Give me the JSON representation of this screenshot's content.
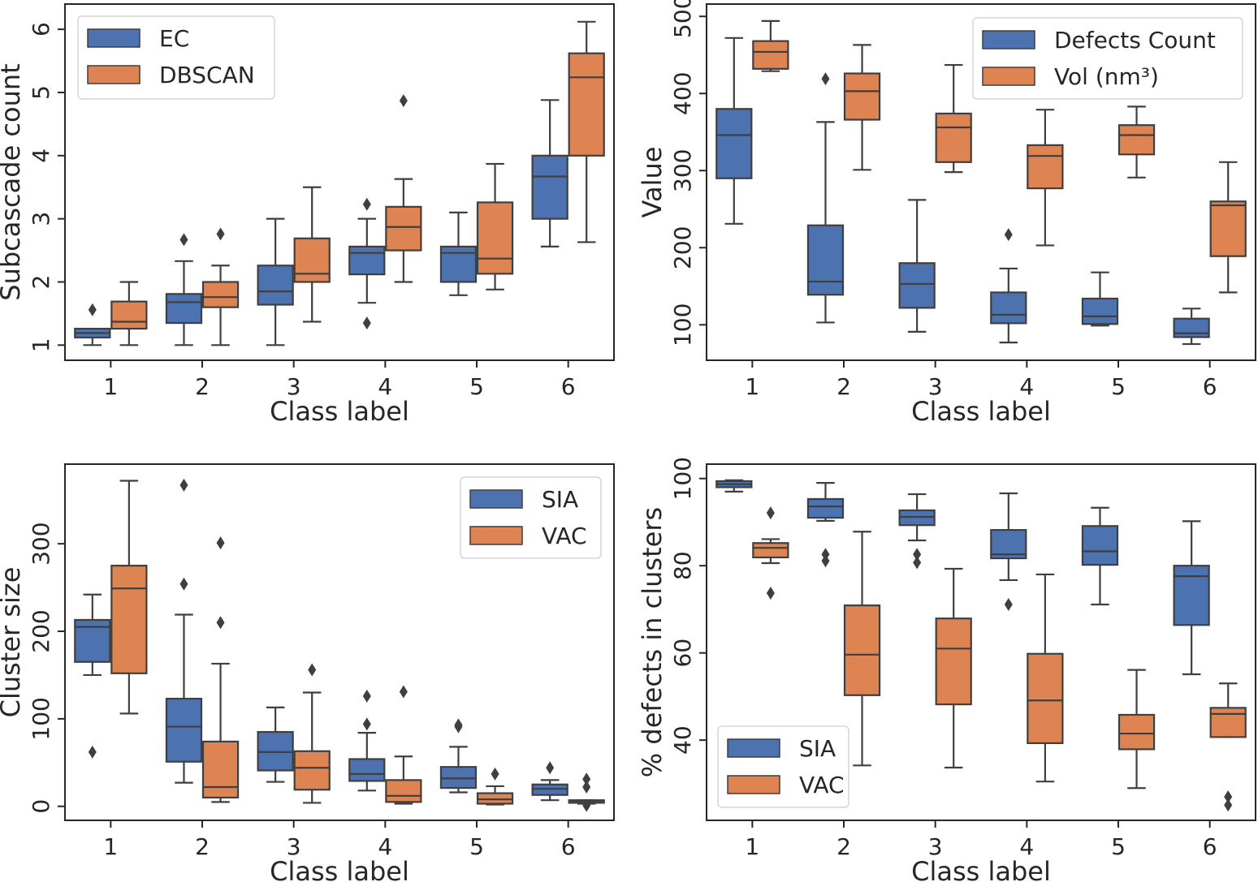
{
  "colors": {
    "blue": "#4c72b0",
    "orange": "#dd8452",
    "line": "#3f3f3f"
  },
  "chart_data": [
    {
      "type": "box",
      "xlabel": "Class label",
      "ylabel": "Subcascade count",
      "categories": [
        "1",
        "2",
        "3",
        "4",
        "5",
        "6"
      ],
      "yticks": [
        1,
        2,
        3,
        4,
        5,
        6
      ],
      "ylim": [
        0.76,
        6.4
      ],
      "legend": "top-left",
      "grid": false,
      "series": [
        {
          "name": "EC",
          "color": "blue",
          "stats": [
            {
              "whislo": 1.0,
              "q1": 1.12,
              "med": 1.19,
              "q3": 1.26,
              "whishi": 1.26,
              "fliers": [
                1.56
              ]
            },
            {
              "whislo": 1.0,
              "q1": 1.35,
              "med": 1.68,
              "q3": 1.81,
              "whishi": 2.33,
              "fliers": [
                2.67
              ]
            },
            {
              "whislo": 1.0,
              "q1": 1.64,
              "med": 1.85,
              "q3": 2.26,
              "whishi": 3.0,
              "fliers": []
            },
            {
              "whislo": 1.67,
              "q1": 2.12,
              "med": 2.46,
              "q3": 2.56,
              "whishi": 3.0,
              "fliers": [
                3.23,
                1.35
              ]
            },
            {
              "whislo": 1.79,
              "q1": 2.0,
              "med": 2.46,
              "q3": 2.56,
              "whishi": 3.1,
              "fliers": []
            },
            {
              "whislo": 2.56,
              "q1": 3.0,
              "med": 3.67,
              "q3": 4.0,
              "whishi": 4.88,
              "fliers": []
            }
          ]
        },
        {
          "name": "DBSCAN",
          "color": "orange",
          "stats": [
            {
              "whislo": 1.0,
              "q1": 1.26,
              "med": 1.37,
              "q3": 1.69,
              "whishi": 2.0,
              "fliers": []
            },
            {
              "whislo": 1.0,
              "q1": 1.6,
              "med": 1.76,
              "q3": 2.0,
              "whishi": 2.26,
              "fliers": [
                2.76
              ]
            },
            {
              "whislo": 1.37,
              "q1": 2.0,
              "med": 2.13,
              "q3": 2.69,
              "whishi": 3.5,
              "fliers": []
            },
            {
              "whislo": 2.0,
              "q1": 2.5,
              "med": 2.87,
              "q3": 3.19,
              "whishi": 3.63,
              "fliers": [
                4.87
              ]
            },
            {
              "whislo": 1.88,
              "q1": 2.13,
              "med": 2.37,
              "q3": 3.26,
              "whishi": 3.87,
              "fliers": []
            },
            {
              "whislo": 2.63,
              "q1": 4.0,
              "med": 5.24,
              "q3": 5.62,
              "whishi": 6.12,
              "fliers": []
            }
          ]
        }
      ]
    },
    {
      "type": "box",
      "xlabel": "Class label",
      "ylabel": "Value",
      "categories": [
        "1",
        "2",
        "3",
        "4",
        "5",
        "6"
      ],
      "yticks": [
        100,
        200,
        300,
        400,
        500
      ],
      "ylim": [
        54,
        516
      ],
      "legend": "top-right",
      "grid": false,
      "series": [
        {
          "name": "Defects Count",
          "color": "blue",
          "stats": [
            {
              "whislo": 231,
              "q1": 290,
              "med": 346,
              "q3": 380,
              "whishi": 472,
              "fliers": []
            },
            {
              "whislo": 103,
              "q1": 139,
              "med": 156,
              "q3": 229,
              "whishi": 363,
              "fliers": [
                419
              ]
            },
            {
              "whislo": 91,
              "q1": 122,
              "med": 153,
              "q3": 180,
              "whishi": 262,
              "fliers": []
            },
            {
              "whislo": 77,
              "q1": 102,
              "med": 113,
              "q3": 142,
              "whishi": 173,
              "fliers": [
                217
              ]
            },
            {
              "whislo": 99,
              "q1": 101,
              "med": 111,
              "q3": 134,
              "whishi": 168,
              "fliers": []
            },
            {
              "whislo": 75,
              "q1": 84,
              "med": 89,
              "q3": 108,
              "whishi": 121,
              "fliers": []
            }
          ]
        },
        {
          "name": "Vol (nm³)",
          "color": "orange",
          "stats": [
            {
              "whislo": 429,
              "q1": 432,
              "med": 454,
              "q3": 468,
              "whishi": 494,
              "fliers": []
            },
            {
              "whislo": 301,
              "q1": 366,
              "med": 403,
              "q3": 426,
              "whishi": 463,
              "fliers": []
            },
            {
              "whislo": 298,
              "q1": 311,
              "med": 356,
              "q3": 374,
              "whishi": 437,
              "fliers": []
            },
            {
              "whislo": 203,
              "q1": 277,
              "med": 319,
              "q3": 333,
              "whishi": 379,
              "fliers": []
            },
            {
              "whislo": 291,
              "q1": 321,
              "med": 346,
              "q3": 359,
              "whishi": 383,
              "fliers": []
            },
            {
              "whislo": 142,
              "q1": 189,
              "med": 255,
              "q3": 260,
              "whishi": 311,
              "fliers": []
            }
          ]
        }
      ]
    },
    {
      "type": "box",
      "xlabel": "Class label",
      "ylabel": "Cluster size",
      "categories": [
        "1",
        "2",
        "3",
        "4",
        "5",
        "6"
      ],
      "yticks": [
        0,
        100,
        200,
        300
      ],
      "ylim": [
        -16,
        391
      ],
      "legend": "top-right",
      "grid": false,
      "series": [
        {
          "name": "SIA",
          "color": "blue",
          "stats": [
            {
              "whislo": 150,
              "q1": 165,
              "med": 205,
              "q3": 213,
              "whishi": 242,
              "fliers": [
                62
              ]
            },
            {
              "whislo": 27,
              "q1": 51,
              "med": 91,
              "q3": 123,
              "whishi": 219,
              "fliers": [
                254,
                367
              ]
            },
            {
              "whislo": 28,
              "q1": 41,
              "med": 62,
              "q3": 85,
              "whishi": 113,
              "fliers": []
            },
            {
              "whislo": 18,
              "q1": 29,
              "med": 37,
              "q3": 54,
              "whishi": 84,
              "fliers": [
                94,
                126
              ]
            },
            {
              "whislo": 16,
              "q1": 21,
              "med": 32,
              "q3": 45,
              "whishi": 68,
              "fliers": [
                91,
                93
              ]
            },
            {
              "whislo": 7,
              "q1": 13,
              "med": 20,
              "q3": 25,
              "whishi": 30,
              "fliers": [
                44
              ]
            }
          ]
        },
        {
          "name": "VAC",
          "color": "orange",
          "stats": [
            {
              "whislo": 106,
              "q1": 152,
              "med": 249,
              "q3": 275,
              "whishi": 372,
              "fliers": []
            },
            {
              "whislo": 5,
              "q1": 10,
              "med": 22,
              "q3": 74,
              "whishi": 163,
              "fliers": [
                210,
                301
              ]
            },
            {
              "whislo": 4,
              "q1": 19,
              "med": 44,
              "q3": 63,
              "whishi": 130,
              "fliers": [
                156
              ]
            },
            {
              "whislo": 3,
              "q1": 5,
              "med": 12,
              "q3": 30,
              "whishi": 57,
              "fliers": [
                131
              ]
            },
            {
              "whislo": 2,
              "q1": 3,
              "med": 8,
              "q3": 15,
              "whishi": 23,
              "fliers": [
                37
              ]
            },
            {
              "whislo": 3,
              "q1": 4,
              "med": 6,
              "q3": 7,
              "whishi": 7,
              "fliers": [
                31,
                22,
                1
              ]
            }
          ]
        }
      ]
    },
    {
      "type": "box",
      "xlabel": "Class label",
      "ylabel": "% defects in clusters",
      "categories": [
        "1",
        "2",
        "3",
        "4",
        "5",
        "6"
      ],
      "yticks": [
        40,
        60,
        80,
        100
      ],
      "ylim": [
        21.6,
        103.3
      ],
      "legend": "lower-left",
      "grid": false,
      "series": [
        {
          "name": "SIA",
          "color": "blue",
          "stats": [
            {
              "whislo": 97.0,
              "q1": 98.0,
              "med": 98.7,
              "q3": 99.4,
              "whishi": 99.6,
              "fliers": []
            },
            {
              "whislo": 90.3,
              "q1": 91.0,
              "med": 93.6,
              "q3": 95.3,
              "whishi": 99.0,
              "fliers": [
                82.6,
                81.1
              ]
            },
            {
              "whislo": 85.8,
              "q1": 89.3,
              "med": 91.2,
              "q3": 92.7,
              "whishi": 96.4,
              "fliers": [
                82.6,
                80.7
              ]
            },
            {
              "whislo": 76.7,
              "q1": 81.7,
              "med": 82.6,
              "q3": 88.2,
              "whishi": 96.6,
              "fliers": [
                71.1
              ]
            },
            {
              "whislo": 71.1,
              "q1": 80.2,
              "med": 83.3,
              "q3": 89.1,
              "whishi": 93.3,
              "fliers": []
            },
            {
              "whislo": 55.1,
              "q1": 66.4,
              "med": 77.6,
              "q3": 80.0,
              "whishi": 90.2,
              "fliers": []
            }
          ]
        },
        {
          "name": "VAC",
          "color": "orange",
          "stats": [
            {
              "whislo": 80.6,
              "q1": 81.9,
              "med": 84.1,
              "q3": 85.2,
              "whishi": 86.1,
              "fliers": [
                92.1,
                73.7
              ]
            },
            {
              "whislo": 34.2,
              "q1": 50.3,
              "med": 59.6,
              "q3": 70.9,
              "whishi": 87.8,
              "fliers": []
            },
            {
              "whislo": 33.7,
              "q1": 48.2,
              "med": 61.0,
              "q3": 67.9,
              "whishi": 79.3,
              "fliers": []
            },
            {
              "whislo": 30.5,
              "q1": 39.3,
              "med": 49.1,
              "q3": 59.8,
              "whishi": 78.0,
              "fliers": []
            },
            {
              "whislo": 29.0,
              "q1": 37.9,
              "med": 41.5,
              "q3": 45.8,
              "whishi": 56.1,
              "fliers": []
            },
            {
              "whislo": 40.7,
              "q1": 40.7,
              "med": 46.0,
              "q3": 47.4,
              "whishi": 53.0,
              "fliers": [
                27.0,
                25.1
              ]
            }
          ]
        }
      ]
    }
  ]
}
